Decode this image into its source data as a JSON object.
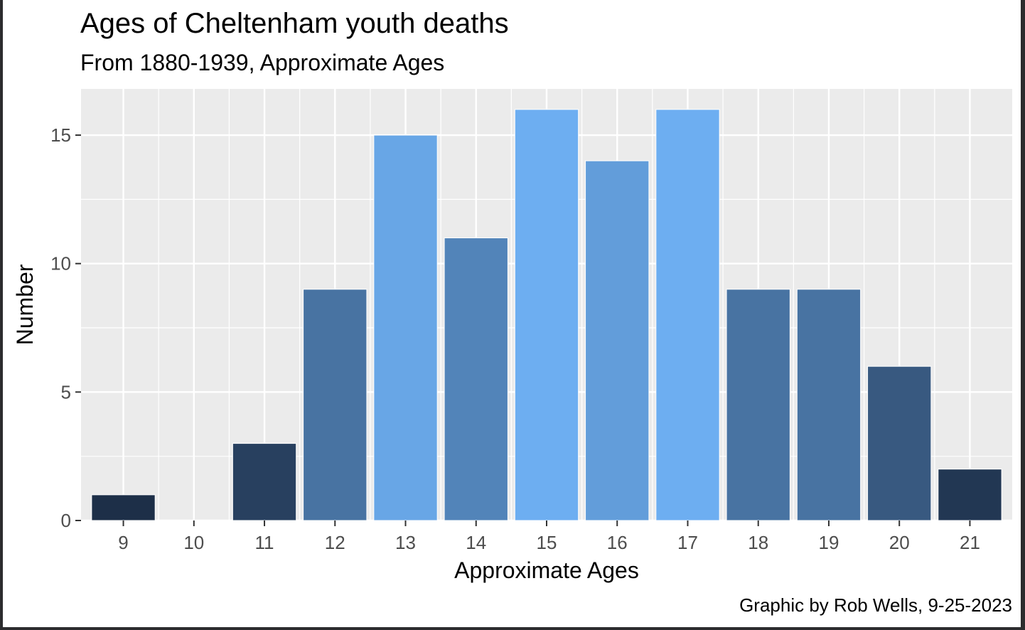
{
  "chart_data": {
    "type": "bar",
    "title": "Ages of Cheltenham youth deaths",
    "subtitle": "From 1880-1939, Approximate Ages",
    "xlabel": "Approximate Ages",
    "ylabel": "Number",
    "caption": "Graphic by Rob Wells, 9-25-2023",
    "categories": [
      "9",
      "10",
      "11",
      "12",
      "13",
      "14",
      "15",
      "16",
      "17",
      "18",
      "19",
      "20",
      "21"
    ],
    "values": [
      1,
      0,
      3,
      9,
      15,
      11,
      16,
      14,
      16,
      9,
      9,
      6,
      2
    ],
    "ylim": [
      0,
      16.8
    ],
    "yticks": [
      0,
      5,
      10,
      15
    ],
    "grid": true,
    "legend": "none",
    "colors": {
      "panel_background": "#ebebeb",
      "grid_major": "#ffffff",
      "low": "#1d2f48",
      "high": "#6daef1"
    }
  }
}
